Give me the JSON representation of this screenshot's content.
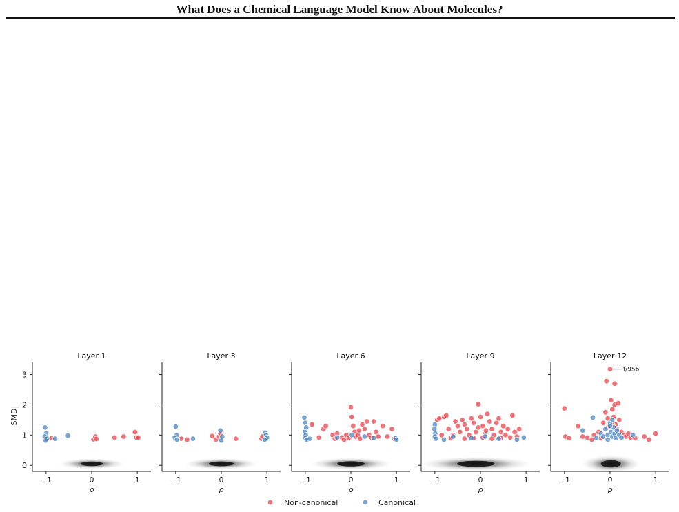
{
  "page": {
    "title": "What Does a Chemical Language Model Know About Molecules?"
  },
  "figure": {
    "ylabel": "|SMD|",
    "xlabel": "ρ̄",
    "legend": [
      {
        "label": "Non-canonical",
        "color": "#e8434b"
      },
      {
        "label": "Canonical",
        "color": "#4a86c0"
      }
    ],
    "annotation": "f/956"
  },
  "chart_data": {
    "type": "scatter",
    "xlim": [
      -1.3,
      1.3
    ],
    "ylim": [
      -0.2,
      3.4
    ],
    "xticks": [
      "−1",
      "0",
      "1"
    ],
    "yticks": [
      "0",
      "1",
      "2",
      "3"
    ],
    "legend_position": "bottom-center",
    "panels": [
      {
        "title": "Layer 1",
        "density": {
          "center": 0,
          "spread": 0.45,
          "height": 0.12
        },
        "series": [
          {
            "name": "Non-canonical",
            "points": [
              [
                0.04,
                0.86
              ],
              [
                0.08,
                0.95
              ],
              [
                0.1,
                0.87
              ],
              [
                0.5,
                0.92
              ],
              [
                0.7,
                0.95
              ],
              [
                0.95,
                1.1
              ],
              [
                0.98,
                0.92
              ],
              [
                1.02,
                0.92
              ],
              [
                -0.88,
                0.9
              ]
            ]
          },
          {
            "name": "Canonical",
            "points": [
              [
                -1.02,
                1.25
              ],
              [
                -1.0,
                1.05
              ],
              [
                -1.03,
                0.95
              ],
              [
                -0.98,
                0.88
              ],
              [
                -1.01,
                0.82
              ],
              [
                -0.52,
                0.98
              ],
              [
                -0.8,
                0.88
              ]
            ]
          }
        ]
      },
      {
        "title": "Layer 3",
        "density": {
          "center": 0,
          "spread": 0.5,
          "height": 0.15
        },
        "series": [
          {
            "name": "Non-canonical",
            "points": [
              [
                -0.88,
                0.88
              ],
              [
                -0.75,
                0.85
              ],
              [
                -0.2,
                0.97
              ],
              [
                -0.12,
                0.85
              ],
              [
                -0.05,
                0.95
              ],
              [
                0.32,
                0.88
              ],
              [
                0.88,
                0.88
              ],
              [
                0.9,
                0.95
              ],
              [
                -0.02,
                1.05
              ]
            ]
          },
          {
            "name": "Canonical",
            "points": [
              [
                -1.0,
                1.28
              ],
              [
                -0.98,
                1.0
              ],
              [
                -1.02,
                0.92
              ],
              [
                -0.97,
                0.85
              ],
              [
                -0.62,
                0.88
              ],
              [
                -0.02,
                1.15
              ],
              [
                0.02,
                0.95
              ],
              [
                0.0,
                0.82
              ],
              [
                0.96,
                1.08
              ],
              [
                0.98,
                1.0
              ],
              [
                1.0,
                0.92
              ],
              [
                0.95,
                0.85
              ]
            ]
          }
        ]
      },
      {
        "title": "Layer 6",
        "density": {
          "center": 0,
          "spread": 0.55,
          "height": 0.2
        },
        "series": [
          {
            "name": "Non-canonical",
            "points": [
              [
                -0.85,
                1.35
              ],
              [
                -0.6,
                1.2
              ],
              [
                -0.55,
                1.3
              ],
              [
                -0.4,
                1.0
              ],
              [
                -0.3,
                1.05
              ],
              [
                -0.2,
                0.92
              ],
              [
                -0.15,
                0.85
              ],
              [
                -0.1,
                1.0
              ],
              [
                -0.05,
                0.9
              ],
              [
                0.0,
                1.92
              ],
              [
                0.02,
                1.6
              ],
              [
                0.05,
                1.3
              ],
              [
                0.08,
                1.1
              ],
              [
                0.1,
                0.95
              ],
              [
                0.15,
                1.0
              ],
              [
                0.2,
                0.88
              ],
              [
                0.25,
                1.35
              ],
              [
                0.3,
                1.2
              ],
              [
                0.35,
                1.45
              ],
              [
                0.4,
                1.0
              ],
              [
                0.45,
                0.92
              ],
              [
                0.5,
                1.45
              ],
              [
                0.55,
                1.1
              ],
              [
                0.6,
                0.95
              ],
              [
                0.7,
                1.3
              ],
              [
                0.8,
                0.95
              ],
              [
                0.9,
                1.2
              ],
              [
                0.95,
                0.88
              ],
              [
                -0.7,
                0.92
              ],
              [
                -0.35,
                0.88
              ],
              [
                0.18,
                1.15
              ]
            ]
          },
          {
            "name": "Canonical",
            "points": [
              [
                -1.02,
                1.58
              ],
              [
                -1.0,
                1.4
              ],
              [
                -0.98,
                1.25
              ],
              [
                -1.01,
                1.1
              ],
              [
                -0.99,
                1.0
              ],
              [
                -1.0,
                0.9
              ],
              [
                -0.97,
                0.85
              ],
              [
                -0.9,
                0.88
              ],
              [
                -0.3,
                0.92
              ],
              [
                0.02,
                1.0
              ],
              [
                0.3,
                0.95
              ],
              [
                0.98,
                0.9
              ],
              [
                1.0,
                0.85
              ],
              [
                0.5,
                0.9
              ]
            ]
          }
        ]
      },
      {
        "title": "Layer 9",
        "density": {
          "center": -0.1,
          "spread": 0.75,
          "height": 0.3
        },
        "series": [
          {
            "name": "Non-canonical",
            "points": [
              [
                -0.95,
                1.5
              ],
              [
                -0.9,
                1.55
              ],
              [
                -0.8,
                1.6
              ],
              [
                -0.75,
                1.65
              ],
              [
                -0.7,
                1.2
              ],
              [
                -0.6,
                1.0
              ],
              [
                -0.55,
                1.45
              ],
              [
                -0.5,
                1.3
              ],
              [
                -0.45,
                1.1
              ],
              [
                -0.4,
                1.5
              ],
              [
                -0.35,
                1.35
              ],
              [
                -0.3,
                1.2
              ],
              [
                -0.25,
                1.0
              ],
              [
                -0.2,
                1.55
              ],
              [
                -0.15,
                1.4
              ],
              [
                -0.1,
                1.1
              ],
              [
                -0.05,
                2.02
              ],
              [
                0.0,
                1.6
              ],
              [
                0.05,
                1.3
              ],
              [
                0.1,
                1.05
              ],
              [
                0.15,
                1.7
              ],
              [
                0.2,
                1.45
              ],
              [
                0.25,
                1.2
              ],
              [
                0.3,
                1.0
              ],
              [
                0.35,
                1.4
              ],
              [
                0.4,
                1.55
              ],
              [
                0.45,
                1.1
              ],
              [
                0.5,
                1.3
              ],
              [
                0.55,
                1.0
              ],
              [
                0.6,
                1.2
              ],
              [
                0.7,
                1.65
              ],
              [
                0.75,
                1.1
              ],
              [
                0.8,
                0.95
              ],
              [
                0.85,
                1.2
              ],
              [
                -0.65,
                0.9
              ],
              [
                -0.35,
                0.88
              ],
              [
                -0.15,
                0.9
              ],
              [
                0.05,
                0.92
              ],
              [
                0.25,
                0.88
              ],
              [
                0.45,
                0.9
              ],
              [
                0.65,
                0.92
              ],
              [
                -0.85,
                1.0
              ],
              [
                -0.05,
                1.25
              ],
              [
                0.12,
                1.15
              ]
            ]
          },
          {
            "name": "Canonical",
            "points": [
              [
                -1.0,
                1.35
              ],
              [
                -1.01,
                1.2
              ],
              [
                -0.99,
                1.05
              ],
              [
                -1.0,
                0.95
              ],
              [
                -0.98,
                0.88
              ],
              [
                -0.6,
                0.95
              ],
              [
                -0.2,
                0.9
              ],
              [
                0.1,
                0.95
              ],
              [
                0.4,
                0.88
              ],
              [
                0.8,
                0.85
              ],
              [
                0.95,
                0.92
              ],
              [
                -0.8,
                0.85
              ]
            ]
          }
        ]
      },
      {
        "title": "Layer 12",
        "density": {
          "center": 0.02,
          "spread": 0.4,
          "height": 0.45
        },
        "series": [
          {
            "name": "Non-canonical",
            "points": [
              [
                -1.0,
                1.88
              ],
              [
                -0.98,
                0.95
              ],
              [
                -0.9,
                0.9
              ],
              [
                -0.7,
                1.3
              ],
              [
                -0.6,
                0.95
              ],
              [
                -0.5,
                0.92
              ],
              [
                -0.35,
                1.0
              ],
              [
                -0.25,
                1.1
              ],
              [
                -0.15,
                1.4
              ],
              [
                -0.1,
                1.75
              ],
              [
                -0.08,
                2.78
              ],
              [
                -0.05,
                1.55
              ],
              [
                0.0,
                3.18
              ],
              [
                0.02,
                2.15
              ],
              [
                0.05,
                1.85
              ],
              [
                0.08,
                1.6
              ],
              [
                0.1,
                2.0
              ],
              [
                0.12,
                1.35
              ],
              [
                0.15,
                1.2
              ],
              [
                0.18,
                2.05
              ],
              [
                0.2,
                1.5
              ],
              [
                0.25,
                1.1
              ],
              [
                0.3,
                1.0
              ],
              [
                0.35,
                0.95
              ],
              [
                0.45,
                0.92
              ],
              [
                0.55,
                0.9
              ],
              [
                0.75,
                0.95
              ],
              [
                0.85,
                0.85
              ],
              [
                1.0,
                1.05
              ],
              [
                0.1,
                2.7
              ],
              [
                -0.4,
                0.85
              ],
              [
                -0.2,
                0.9
              ],
              [
                0.4,
                1.05
              ],
              [
                -0.05,
                1.25
              ],
              [
                0.05,
                1.35
              ]
            ]
          },
          {
            "name": "Canonical",
            "points": [
              [
                -0.38,
                1.58
              ],
              [
                -0.6,
                1.15
              ],
              [
                -0.3,
                0.9
              ],
              [
                -0.2,
                1.05
              ],
              [
                -0.15,
                0.95
              ],
              [
                -0.1,
                1.2
              ],
              [
                -0.05,
                1.0
              ],
              [
                0.0,
                1.4
              ],
              [
                0.02,
                1.1
              ],
              [
                0.05,
                0.95
              ],
              [
                0.08,
                1.25
              ],
              [
                0.1,
                1.05
              ],
              [
                0.12,
                0.9
              ],
              [
                0.15,
                1.15
              ],
              [
                0.2,
                1.0
              ],
              [
                0.25,
                0.92
              ],
              [
                0.5,
                1.0
              ],
              [
                -0.05,
                0.85
              ],
              [
                0.0,
                1.3
              ],
              [
                0.05,
                1.5
              ]
            ]
          }
        ]
      }
    ]
  }
}
